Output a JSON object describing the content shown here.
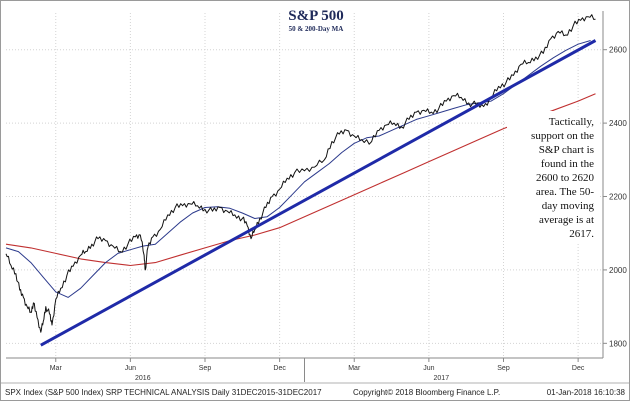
{
  "chart_data": {
    "type": "line",
    "title": "S&P 500",
    "subtitle": "50 & 200-Day MA",
    "y_ticks": [
      1800,
      2000,
      2200,
      2400,
      2600
    ],
    "ylim": [
      1760,
      2700
    ],
    "x_ticks": [
      "Mar",
      "Jun",
      "Sep",
      "Dec",
      "Mar",
      "Jun",
      "Sep",
      "Dec"
    ],
    "x_tick_months": [
      2,
      5,
      8,
      11,
      14,
      17,
      20,
      23
    ],
    "year_labels": [
      {
        "label": "2016",
        "month": 5.5
      },
      {
        "label": "2017",
        "month": 17.5
      }
    ],
    "xlim": [
      0,
      24
    ],
    "series": [
      {
        "key": "price",
        "color": "#111111",
        "points": [
          [
            0.0,
            2044
          ],
          [
            0.2,
            2012
          ],
          [
            0.4,
            1990
          ],
          [
            0.55,
            1945
          ],
          [
            0.7,
            1925
          ],
          [
            0.85,
            1900
          ],
          [
            1.0,
            1885
          ],
          [
            1.1,
            1910
          ],
          [
            1.25,
            1870
          ],
          [
            1.4,
            1830
          ],
          [
            1.5,
            1860
          ],
          [
            1.6,
            1900
          ],
          [
            1.75,
            1880
          ],
          [
            1.85,
            1850
          ],
          [
            2.0,
            1920
          ],
          [
            2.2,
            1950
          ],
          [
            2.45,
            1985
          ],
          [
            2.7,
            2010
          ],
          [
            3.0,
            2040
          ],
          [
            3.2,
            2050
          ],
          [
            3.45,
            2070
          ],
          [
            3.7,
            2085
          ],
          [
            4.0,
            2080
          ],
          [
            4.3,
            2065
          ],
          [
            4.6,
            2050
          ],
          [
            4.9,
            2070
          ],
          [
            5.2,
            2090
          ],
          [
            5.4,
            2095
          ],
          [
            5.55,
            2040
          ],
          [
            5.6,
            2000
          ],
          [
            5.7,
            2060
          ],
          [
            5.9,
            2090
          ],
          [
            6.2,
            2110
          ],
          [
            6.5,
            2150
          ],
          [
            6.8,
            2170
          ],
          [
            7.1,
            2175
          ],
          [
            7.4,
            2180
          ],
          [
            7.7,
            2175
          ],
          [
            8.0,
            2165
          ],
          [
            8.3,
            2160
          ],
          [
            8.6,
            2170
          ],
          [
            8.9,
            2160
          ],
          [
            9.2,
            2150
          ],
          [
            9.5,
            2140
          ],
          [
            9.7,
            2120
          ],
          [
            9.85,
            2085
          ],
          [
            10.0,
            2110
          ],
          [
            10.2,
            2140
          ],
          [
            10.45,
            2170
          ],
          [
            10.7,
            2200
          ],
          [
            11.0,
            2220
          ],
          [
            11.3,
            2250
          ],
          [
            11.6,
            2265
          ],
          [
            12.0,
            2270
          ],
          [
            12.4,
            2280
          ],
          [
            12.8,
            2300
          ],
          [
            13.1,
            2350
          ],
          [
            13.4,
            2370
          ],
          [
            13.7,
            2380
          ],
          [
            14.0,
            2365
          ],
          [
            14.3,
            2355
          ],
          [
            14.7,
            2350
          ],
          [
            15.0,
            2380
          ],
          [
            15.3,
            2395
          ],
          [
            15.6,
            2400
          ],
          [
            15.9,
            2390
          ],
          [
            16.2,
            2410
          ],
          [
            16.5,
            2430
          ],
          [
            16.8,
            2435
          ],
          [
            17.1,
            2430
          ],
          [
            17.4,
            2440
          ],
          [
            17.7,
            2460
          ],
          [
            18.0,
            2475
          ],
          [
            18.3,
            2470
          ],
          [
            18.6,
            2455
          ],
          [
            18.9,
            2450
          ],
          [
            19.2,
            2445
          ],
          [
            19.5,
            2470
          ],
          [
            19.8,
            2500
          ],
          [
            20.1,
            2510
          ],
          [
            20.4,
            2530
          ],
          [
            20.7,
            2560
          ],
          [
            21.0,
            2565
          ],
          [
            21.3,
            2580
          ],
          [
            21.6,
            2590
          ],
          [
            21.9,
            2630
          ],
          [
            22.2,
            2650
          ],
          [
            22.5,
            2640
          ],
          [
            22.8,
            2665
          ],
          [
            23.1,
            2680
          ],
          [
            23.4,
            2690
          ],
          [
            23.7,
            2683
          ]
        ]
      },
      {
        "key": "ma50",
        "color": "#2c3a8c",
        "points": [
          [
            0.0,
            2060
          ],
          [
            0.5,
            2050
          ],
          [
            1.0,
            2020
          ],
          [
            1.5,
            1980
          ],
          [
            2.0,
            1940
          ],
          [
            2.5,
            1925
          ],
          [
            3.0,
            1950
          ],
          [
            3.5,
            1985
          ],
          [
            4.0,
            2020
          ],
          [
            4.5,
            2045
          ],
          [
            5.0,
            2055
          ],
          [
            5.5,
            2065
          ],
          [
            6.0,
            2070
          ],
          [
            6.5,
            2100
          ],
          [
            7.0,
            2130
          ],
          [
            7.5,
            2155
          ],
          [
            8.0,
            2170
          ],
          [
            8.5,
            2172
          ],
          [
            9.0,
            2168
          ],
          [
            9.5,
            2155
          ],
          [
            10.0,
            2140
          ],
          [
            10.5,
            2145
          ],
          [
            11.0,
            2170
          ],
          [
            11.5,
            2205
          ],
          [
            12.0,
            2240
          ],
          [
            12.5,
            2265
          ],
          [
            13.0,
            2290
          ],
          [
            13.5,
            2320
          ],
          [
            14.0,
            2345
          ],
          [
            14.5,
            2360
          ],
          [
            15.0,
            2365
          ],
          [
            15.5,
            2380
          ],
          [
            16.0,
            2395
          ],
          [
            16.5,
            2410
          ],
          [
            17.0,
            2420
          ],
          [
            17.5,
            2430
          ],
          [
            18.0,
            2440
          ],
          [
            18.5,
            2450
          ],
          [
            19.0,
            2455
          ],
          [
            19.5,
            2460
          ],
          [
            20.0,
            2480
          ],
          [
            20.5,
            2505
          ],
          [
            21.0,
            2530
          ],
          [
            21.5,
            2555
          ],
          [
            22.0,
            2578
          ],
          [
            22.5,
            2598
          ],
          [
            23.0,
            2615
          ],
          [
            23.5,
            2625
          ]
        ]
      },
      {
        "key": "ma200",
        "color": "#c03030",
        "points": [
          [
            0.0,
            2070
          ],
          [
            1.0,
            2060
          ],
          [
            2.0,
            2045
          ],
          [
            3.0,
            2030
          ],
          [
            4.0,
            2020
          ],
          [
            5.0,
            2012
          ],
          [
            6.0,
            2020
          ],
          [
            7.0,
            2040
          ],
          [
            8.0,
            2060
          ],
          [
            9.0,
            2080
          ],
          [
            10.0,
            2095
          ],
          [
            11.0,
            2115
          ],
          [
            12.0,
            2145
          ],
          [
            13.0,
            2175
          ],
          [
            14.0,
            2205
          ],
          [
            15.0,
            2235
          ],
          [
            16.0,
            2265
          ],
          [
            17.0,
            2295
          ],
          [
            18.0,
            2325
          ],
          [
            19.0,
            2355
          ],
          [
            20.0,
            2385
          ],
          [
            21.0,
            2410
          ],
          [
            22.0,
            2435
          ],
          [
            23.0,
            2460
          ],
          [
            23.7,
            2480
          ]
        ]
      },
      {
        "key": "trendline",
        "color": "#1f2aa8",
        "points": [
          [
            1.4,
            1795
          ],
          [
            23.7,
            2625
          ]
        ]
      }
    ],
    "annotation": [
      "Tactically,",
      "support on the",
      "S&P chart is",
      "found in the",
      "2600 to 2620",
      "area.  The 50-",
      "day moving",
      "average is at",
      "2617."
    ]
  },
  "footer": {
    "left": "SPX Index (S&P 500 Index) SRP TECHNICAL ANALYSIS  Daily 31DEC2015-31DEC2017",
    "center": "Copyright© 2018 Bloomberg Finance L.P.",
    "right": "01-Jan-2018 16:10:38"
  }
}
